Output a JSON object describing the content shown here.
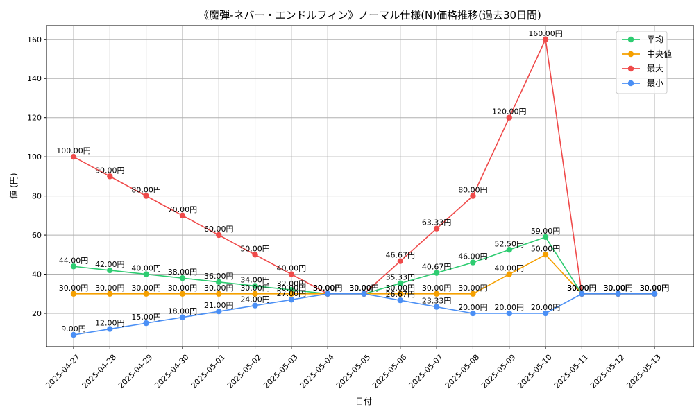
{
  "chart_data": {
    "type": "line",
    "title": "《魔弾-ネバー・エンドルフィン》ノーマル仕様(N)価格推移(過去30日間)",
    "xlabel": "日付",
    "ylabel": "値 (円)",
    "ylim": [
      3,
      167
    ],
    "yticks": [
      20,
      40,
      60,
      80,
      100,
      120,
      140,
      160
    ],
    "grid": true,
    "legend_position": "top-right",
    "label_suffix": "円",
    "categories": [
      "2025-04-27",
      "2025-04-28",
      "2025-04-29",
      "2025-04-30",
      "2025-05-01",
      "2025-05-02",
      "2025-05-03",
      "2025-05-04",
      "2025-05-05",
      "2025-05-06",
      "2025-05-07",
      "2025-05-08",
      "2025-05-09",
      "2025-05-10",
      "2025-05-11",
      "2025-05-12",
      "2025-05-13"
    ],
    "series": [
      {
        "name": "平均",
        "color": "#2ecc71",
        "values": [
          44,
          42,
          40,
          38,
          36,
          34,
          32,
          30,
          30,
          35.33,
          40.67,
          46,
          52.5,
          59,
          30,
          30,
          30
        ]
      },
      {
        "name": "中央値",
        "color": "#f5a000",
        "values": [
          30,
          30,
          30,
          30,
          30,
          30,
          30,
          30,
          30,
          30,
          30,
          30,
          40,
          50,
          30,
          30,
          30
        ]
      },
      {
        "name": "最大",
        "color": "#ef4a4a",
        "values": [
          100,
          90,
          80,
          70,
          60,
          50,
          40,
          30,
          30,
          46.67,
          63.33,
          80,
          120,
          160,
          30,
          30,
          30
        ]
      },
      {
        "name": "最小",
        "color": "#4a8ff5",
        "values": [
          9,
          12,
          15,
          18,
          21,
          24,
          27,
          30,
          30,
          26.67,
          23.33,
          20,
          20,
          20,
          30,
          30,
          30
        ]
      }
    ]
  }
}
